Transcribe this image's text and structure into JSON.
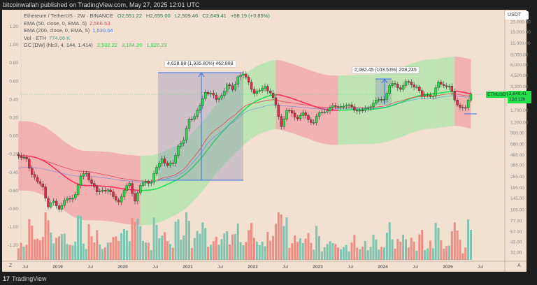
{
  "header": {
    "published": "bitcoinwallah published on TradingView.com, May 27, 2025 12:01 UTC"
  },
  "legend": {
    "symbol": "Ethereum / TetherUS · 2W · BINANCE",
    "open": "O2,551.22",
    "high": "H2,655.00",
    "low": "L2,509.46",
    "close": "C2,649.41",
    "change": "+98.19 (+3.85%)",
    "ema50_label": "EMA (50, close, 0, EMA, 5)",
    "ema50_value": "2,566.53",
    "ema200_label": "EMA (200, close, 0, EMA, 5)",
    "ema200_value": "1,530.64",
    "vol_label": "Vol · ETH",
    "vol_value": "774.66 K",
    "gc_label": "GC [DW] (hlc3, 4, 144, 1.414)",
    "gc_v1": "2,502.22",
    "gc_v2": "3,184.20",
    "gc_v3": "1,820.23"
  },
  "colors": {
    "up": "#22e04a",
    "down": "#e8254a",
    "ema50": "#e8455a",
    "ema200": "#4a7cf0",
    "gc_up": "#7ee88f",
    "gc_down": "#f07a8a",
    "vol_up": "#7fc4b0",
    "vol_down": "#ee8d84",
    "measure": "#3a6ff0"
  },
  "price_label": {
    "symbol": "ETHUSDT",
    "price": "2,649.41",
    "countdown": "12d 12h"
  },
  "currency": "USDT",
  "measures": [
    {
      "text": "4,628.88 (1,935.80%) 462,888"
    },
    {
      "text": "2,082.45 (103.53%) 208,245"
    }
  ],
  "footer": {
    "brand": "TradingView"
  },
  "axis_buttons": {
    "left": "Z",
    "right": "A"
  },
  "chart_data": {
    "type": "candlestick",
    "title": "Ethereum / TetherUS · 2W · BINANCE",
    "y_scale": "log",
    "ylim": [
      32,
      20000
    ],
    "right_ticks": [
      "20,000.00",
      "15,000.00",
      "11,000.00",
      "8,000.00",
      "6,000.00",
      "4,500.00",
      "3,300.00",
      "1,700.00",
      "1,200.00",
      "900.00",
      "660.00",
      "485.00",
      "365.00",
      "265.00",
      "195.00",
      "145.00",
      "105.00",
      "77.00",
      "57.00",
      "43.00",
      "32.00"
    ],
    "right_tick_values": [
      20000,
      15000,
      11000,
      8000,
      6000,
      4500,
      3300,
      1700,
      1200,
      900,
      660,
      485,
      365,
      265,
      195,
      145,
      105,
      77,
      57,
      43,
      32
    ],
    "left_ticks": [
      "1.20",
      "1.00",
      "0.80",
      "0.60",
      "0.40",
      "0.20",
      "0.00",
      "-0.20",
      "-0.40",
      "-0.60",
      "-0.80",
      "-1.00",
      "-1.20"
    ],
    "x_ticks": [
      "Jul",
      "2019",
      "Jul",
      "2020",
      "Jul",
      "2021",
      "Jul",
      "2022",
      "Jul",
      "2023",
      "Jul",
      "2024",
      "Jul",
      "2025",
      "Jul"
    ],
    "start": "2018-06",
    "monthly_close": [
      450,
      430,
      280,
      230,
      198,
      113,
      133,
      106,
      136,
      141,
      160,
      268,
      290,
      218,
      172,
      180,
      182,
      151,
      130,
      179,
      218,
      133,
      206,
      231,
      225,
      345,
      434,
      360,
      386,
      616,
      737,
      1314,
      1418,
      1918,
      2773,
      2713,
      2275,
      2536,
      3433,
      3000,
      4288,
      4631,
      3682,
      2688,
      2919,
      3282,
      2729,
      1941,
      1067,
      1679,
      1553,
      1328,
      1572,
      1295,
      1196,
      1585,
      1605,
      1822,
      1870,
      1874,
      1934,
      1856,
      1646,
      1671,
      1815,
      2052,
      2281,
      2283,
      3340,
      3505,
      3014,
      3763,
      3437,
      3233,
      2513,
      2603,
      2518,
      3706,
      3337,
      3300,
      2237,
      1822,
      1794,
      2649
    ]
  }
}
